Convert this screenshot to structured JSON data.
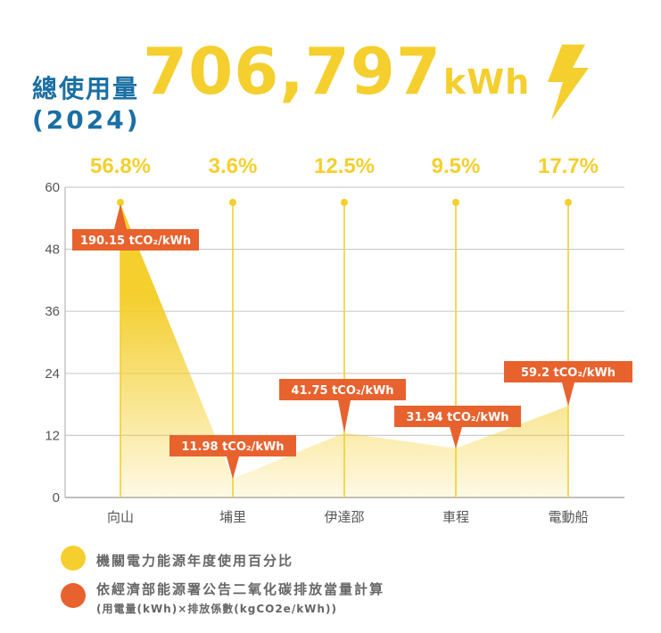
{
  "header": {
    "title": "總使用量",
    "year": "(2024)",
    "total_value": "706,797",
    "total_unit": "kWh",
    "icon": "lightning-bolt-icon"
  },
  "colors": {
    "title_blue": "#1a6fa3",
    "yellow": "#f4cf2e",
    "orange": "#e8622e",
    "grid": "#cccccc",
    "axis_text": "#555555"
  },
  "chart_data": {
    "type": "area",
    "title": "總使用量 706,797kWh (2024)",
    "categories": [
      "向山",
      "埔里",
      "伊達邵",
      "車程",
      "電動船"
    ],
    "series": [
      {
        "name": "機關電力能源年度使用百分比",
        "unit": "%",
        "values": [
          56.8,
          3.6,
          12.5,
          9.5,
          17.7
        ],
        "labels": [
          "56.8%",
          "3.6%",
          "12.5%",
          "9.5%",
          "17.7%"
        ]
      },
      {
        "name": "依經濟部能源署公告二氧化碳排放當量計算",
        "unit": "tCO₂/kWh",
        "values": [
          190.15,
          11.98,
          41.75,
          31.94,
          59.2
        ],
        "labels": [
          "190.15 tCO₂/kWh",
          "11.98 tCO₂/kWh",
          "41.75 tCO₂/kWh",
          "31.94 tCO₂/kWh",
          "59.2 tCO₂/kWh"
        ]
      }
    ],
    "xlabel": "",
    "ylabel": "",
    "yticks": [
      "0",
      "12",
      "24",
      "36",
      "48",
      "60"
    ],
    "ylim": [
      0,
      60
    ],
    "grid": true,
    "legend_position": "bottom"
  },
  "legend": {
    "items": [
      {
        "label": "機關電力能源年度使用百分比",
        "color": "#f4cf2e"
      },
      {
        "label": "依經濟部能源署公告二氧化碳排放當量計算",
        "sublabel": "(用電量(kWh)×排放係數(kgCO2e/kWh))",
        "color": "#e8622e"
      }
    ]
  }
}
